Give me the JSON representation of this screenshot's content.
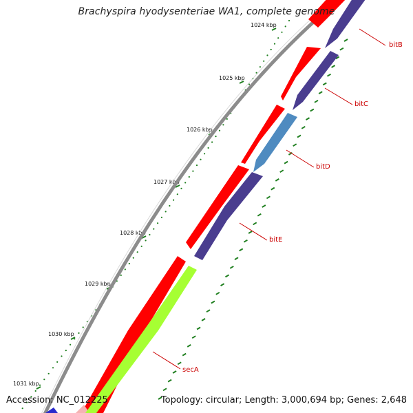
{
  "title": "Brachyspira hyodysenteriae WA1, complete genome",
  "footer": {
    "accession": "Accession: NC_012225",
    "summary": "Topology: circular; Length: 3,000,694 bp; Genes: 2,648"
  },
  "colors": {
    "backbone": "#8c8c8c",
    "forward_cds": "#ff0000",
    "reverse_cds": "#4a3d8f",
    "highlight_cds": "#4f8bc0",
    "other_cds": "#a6ff33",
    "ticks": "#1f7f1f",
    "gene_label": "#cc0000"
  },
  "ticks": [
    {
      "kbp": 1024,
      "label": "1024 kbp"
    },
    {
      "kbp": 1025,
      "label": "1025 kbp"
    },
    {
      "kbp": 1026,
      "label": "1026 kbp"
    },
    {
      "kbp": 1027,
      "label": "1027 kbp"
    },
    {
      "kbp": 1028,
      "label": "1028 kbp"
    },
    {
      "kbp": 1029,
      "label": "1029 kbp"
    },
    {
      "kbp": 1030,
      "label": "1030 kbp"
    },
    {
      "kbp": 1031,
      "label": "1031 kbp"
    }
  ],
  "genes": [
    {
      "name": "bitB",
      "label": "bitB"
    },
    {
      "name": "bitC",
      "label": "bitC"
    },
    {
      "name": "bitD",
      "label": "bitD"
    },
    {
      "name": "bitE",
      "label": "bitE"
    },
    {
      "name": "secA",
      "label": "secA"
    }
  ]
}
